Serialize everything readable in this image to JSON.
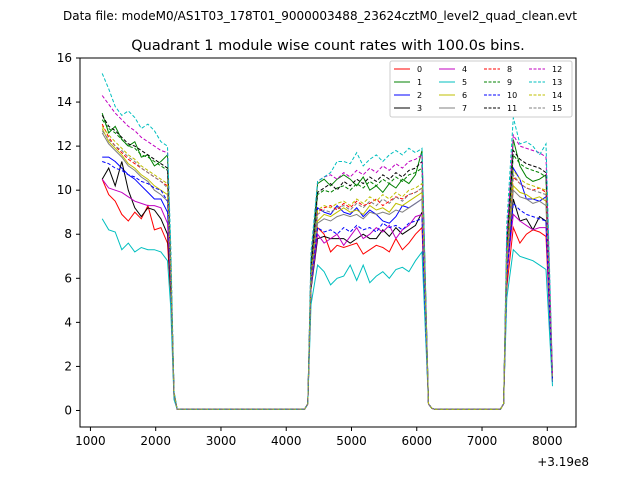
{
  "chart_data": {
    "type": "line",
    "suptitle": "Data file: modeM0/AS1T03_178T01_9000003488_23624cztM0_level2_quad_clean.evt",
    "title": "Quadrant 1 module wise count rates with 100.0s bins.",
    "xlabel": "",
    "ylabel": "",
    "x_offset_label": "+3.19e8",
    "xlim": [
      840,
      8440
    ],
    "ylim": [
      -0.75,
      16.0
    ],
    "xticks": [
      1000,
      2000,
      3000,
      4000,
      5000,
      6000,
      7000,
      8000
    ],
    "yticks": [
      0,
      2,
      4,
      6,
      8,
      10,
      12,
      14,
      16
    ],
    "grid": false,
    "legend_position": "upper-right",
    "x": [
      1180,
      1280,
      1380,
      1480,
      1580,
      1680,
      1780,
      1880,
      1980,
      2080,
      2180,
      2230,
      2280,
      2330,
      4280,
      4330,
      4380,
      4480,
      4580,
      4680,
      4780,
      4880,
      4980,
      5080,
      5180,
      5280,
      5380,
      5480,
      5580,
      5680,
      5780,
      5880,
      5980,
      6080,
      6180,
      6230,
      6280,
      7280,
      7330,
      7380,
      7480,
      7580,
      7680,
      7780,
      7880,
      7980,
      8080
    ],
    "series": [
      {
        "name": "0",
        "color": "#ff0000",
        "dash": "solid",
        "values": [
          10.5,
          9.8,
          9.5,
          8.9,
          8.6,
          9.0,
          8.7,
          9.3,
          8.2,
          8.3,
          7.6,
          5.2,
          0.7,
          0.05,
          0.05,
          0.3,
          5.5,
          8.3,
          8.0,
          7.2,
          7.5,
          7.4,
          7.5,
          7.6,
          7.1,
          7.3,
          7.5,
          7.4,
          7.2,
          7.8,
          7.3,
          7.6,
          8.0,
          8.3,
          0.3,
          0.1,
          0.05,
          0.05,
          0.3,
          5.6,
          8.3,
          7.6,
          8.0,
          8.2,
          8.1,
          7.9,
          1.3
        ]
      },
      {
        "name": "1",
        "color": "#008000",
        "dash": "solid",
        "values": [
          13.5,
          12.6,
          12.9,
          12.3,
          12.0,
          12.2,
          11.5,
          11.6,
          11.1,
          11.3,
          11.6,
          6.8,
          0.8,
          0.05,
          0.05,
          0.3,
          6.8,
          10.3,
          10.5,
          10.2,
          10.5,
          10.7,
          10.5,
          10.2,
          10.6,
          10.0,
          10.2,
          9.9,
          10.3,
          10.1,
          10.5,
          10.3,
          10.7,
          11.8,
          0.3,
          0.1,
          0.05,
          0.05,
          0.3,
          7.7,
          12.3,
          11.1,
          10.6,
          10.4,
          10.5,
          10.7,
          1.5
        ]
      },
      {
        "name": "2",
        "color": "#0000ff",
        "dash": "solid",
        "values": [
          11.5,
          11.5,
          11.3,
          11.0,
          10.7,
          10.5,
          10.2,
          9.9,
          9.6,
          9.6,
          9.0,
          6.0,
          0.7,
          0.05,
          0.05,
          0.3,
          6.2,
          9.2,
          9.0,
          8.9,
          9.3,
          9.0,
          8.9,
          9.2,
          8.8,
          9.1,
          8.9,
          8.6,
          8.5,
          8.8,
          9.3,
          9.2,
          9.4,
          9.6,
          0.3,
          0.1,
          0.05,
          0.05,
          0.3,
          6.9,
          11.0,
          10.5,
          9.6,
          9.6,
          9.5,
          9.7,
          1.3
        ]
      },
      {
        "name": "3",
        "color": "#000000",
        "dash": "solid",
        "values": [
          10.5,
          11.0,
          10.2,
          11.3,
          10.0,
          9.2,
          8.8,
          9.2,
          9.1,
          8.7,
          8.0,
          5.5,
          0.7,
          0.05,
          0.05,
          0.3,
          5.5,
          7.8,
          7.9,
          7.8,
          7.8,
          7.8,
          7.6,
          7.8,
          8.0,
          7.8,
          7.8,
          8.2,
          7.9,
          8.3,
          8.0,
          8.2,
          8.4,
          9.0,
          0.3,
          0.1,
          0.05,
          0.05,
          0.3,
          6.0,
          9.6,
          8.6,
          8.7,
          8.2,
          8.8,
          8.6,
          1.3
        ]
      },
      {
        "name": "4",
        "color": "#c000c0",
        "dash": "solid",
        "values": [
          10.5,
          10.1,
          10.0,
          9.9,
          9.7,
          9.5,
          9.4,
          9.3,
          9.3,
          9.2,
          8.5,
          5.8,
          0.7,
          0.05,
          0.05,
          0.3,
          5.6,
          8.0,
          7.6,
          7.8,
          8.0,
          7.5,
          7.9,
          8.3,
          7.8,
          8.0,
          8.3,
          8.1,
          8.4,
          7.8,
          8.2,
          8.4,
          8.8,
          8.9,
          0.3,
          0.1,
          0.05,
          0.05,
          0.3,
          6.2,
          8.9,
          8.6,
          8.4,
          8.2,
          8.3,
          8.3,
          1.3
        ]
      },
      {
        "name": "5",
        "color": "#00bfbf",
        "dash": "solid",
        "values": [
          8.7,
          8.2,
          8.1,
          7.3,
          7.6,
          7.2,
          7.4,
          7.3,
          7.3,
          7.2,
          6.8,
          4.7,
          0.5,
          0.05,
          0.05,
          0.3,
          4.8,
          6.6,
          6.3,
          5.7,
          6.0,
          6.1,
          6.6,
          5.9,
          6.6,
          5.8,
          6.1,
          6.3,
          6.0,
          6.4,
          6.5,
          6.3,
          6.8,
          7.2,
          0.3,
          0.1,
          0.05,
          0.05,
          0.3,
          5.1,
          7.3,
          7.0,
          6.9,
          6.8,
          6.6,
          6.4,
          1.1
        ]
      },
      {
        "name": "6",
        "color": "#bfbf00",
        "dash": "solid",
        "values": [
          12.8,
          12.2,
          11.9,
          11.6,
          11.2,
          11.0,
          10.7,
          10.5,
          10.2,
          10.0,
          9.8,
          6.2,
          0.7,
          0.05,
          0.05,
          0.3,
          5.8,
          8.6,
          8.9,
          8.8,
          9.0,
          9.2,
          9.0,
          9.1,
          8.9,
          9.3,
          9.1,
          9.2,
          9.0,
          9.4,
          9.3,
          9.5,
          9.7,
          9.9,
          0.3,
          0.1,
          0.05,
          0.05,
          0.3,
          6.6,
          10.2,
          9.9,
          9.8,
          9.6,
          9.7,
          9.5,
          1.4
        ]
      },
      {
        "name": "7",
        "color": "#808080",
        "dash": "solid",
        "values": [
          12.6,
          12.1,
          11.8,
          11.5,
          11.1,
          10.9,
          10.6,
          10.4,
          10.0,
          9.8,
          9.5,
          6.0,
          0.7,
          0.05,
          0.05,
          0.3,
          5.7,
          8.5,
          8.7,
          8.6,
          8.8,
          8.9,
          8.8,
          8.9,
          8.7,
          9.0,
          8.9,
          9.0,
          8.9,
          9.1,
          9.0,
          9.2,
          9.4,
          9.6,
          0.3,
          0.1,
          0.05,
          0.05,
          0.3,
          6.5,
          10.0,
          9.7,
          9.6,
          9.4,
          9.5,
          9.3,
          1.4
        ]
      },
      {
        "name": "8",
        "color": "#ff0000",
        "dash": "dashed",
        "values": [
          13.0,
          12.4,
          12.0,
          11.7,
          11.4,
          11.2,
          11.0,
          10.8,
          10.6,
          10.4,
          10.2,
          6.4,
          0.8,
          0.05,
          0.05,
          0.3,
          6.0,
          9.0,
          9.2,
          9.3,
          9.1,
          9.4,
          9.2,
          9.5,
          9.3,
          9.4,
          9.6,
          9.3,
          9.5,
          9.7,
          9.6,
          9.8,
          9.9,
          10.1,
          0.3,
          0.1,
          0.05,
          0.05,
          0.3,
          6.8,
          10.6,
          10.3,
          10.1,
          10.0,
          10.1,
          9.9,
          1.5
        ]
      },
      {
        "name": "9",
        "color": "#008000",
        "dash": "dashed",
        "values": [
          13.2,
          12.8,
          12.6,
          12.3,
          12.0,
          11.9,
          11.6,
          11.5,
          11.3,
          11.1,
          10.9,
          6.7,
          0.8,
          0.05,
          0.05,
          0.3,
          6.4,
          9.8,
          10.0,
          9.9,
          10.1,
          10.2,
          10.0,
          10.3,
          10.1,
          10.4,
          10.2,
          10.5,
          10.3,
          10.6,
          10.4,
          10.7,
          10.8,
          11.0,
          0.3,
          0.1,
          0.05,
          0.05,
          0.3,
          7.3,
          11.6,
          11.2,
          11.0,
          10.9,
          10.8,
          10.6,
          1.5
        ]
      },
      {
        "name": "10",
        "color": "#0000ff",
        "dash": "dashed",
        "values": [
          11.3,
          11.2,
          11.0,
          10.9,
          10.7,
          10.6,
          10.4,
          10.3,
          10.1,
          10.0,
          9.5,
          6.1,
          0.7,
          0.05,
          0.05,
          0.3,
          5.8,
          8.3,
          8.1,
          8.2,
          8.0,
          8.3,
          8.1,
          8.4,
          8.2,
          8.3,
          8.1,
          8.5,
          8.3,
          8.4,
          8.2,
          8.5,
          8.6,
          8.7,
          0.3,
          0.1,
          0.05,
          0.05,
          0.3,
          6.2,
          9.4,
          9.1,
          8.9,
          8.8,
          8.7,
          8.6,
          1.3
        ]
      },
      {
        "name": "11",
        "color": "#000000",
        "dash": "dashed",
        "values": [
          13.4,
          12.9,
          12.7,
          12.4,
          12.1,
          12.0,
          11.8,
          11.6,
          11.4,
          11.2,
          11.0,
          6.8,
          0.8,
          0.05,
          0.05,
          0.3,
          6.5,
          9.9,
          10.1,
          10.3,
          10.0,
          10.4,
          10.2,
          10.5,
          10.3,
          10.6,
          10.4,
          10.7,
          10.5,
          10.8,
          10.6,
          10.9,
          11.0,
          11.3,
          0.3,
          0.1,
          0.05,
          0.05,
          0.3,
          7.4,
          11.8,
          11.4,
          11.2,
          11.1,
          11.0,
          10.8,
          1.5
        ]
      },
      {
        "name": "12",
        "color": "#c000c0",
        "dash": "dashed",
        "values": [
          14.3,
          13.9,
          13.5,
          13.2,
          12.9,
          12.7,
          12.4,
          12.2,
          12.0,
          11.8,
          11.7,
          7.2,
          0.8,
          0.05,
          0.05,
          0.3,
          6.9,
          10.4,
          10.6,
          10.7,
          10.5,
          10.8,
          10.6,
          10.9,
          10.7,
          11.0,
          10.8,
          11.1,
          10.9,
          11.2,
          11.0,
          11.3,
          11.4,
          11.6,
          0.3,
          0.1,
          0.05,
          0.05,
          0.3,
          7.8,
          12.5,
          12.0,
          11.9,
          11.8,
          11.7,
          11.5,
          1.6
        ]
      },
      {
        "name": "13",
        "color": "#00bfbf",
        "dash": "dashed",
        "values": [
          15.3,
          14.6,
          13.8,
          13.4,
          13.6,
          13.3,
          12.8,
          13.0,
          12.7,
          12.2,
          12.0,
          7.6,
          0.9,
          0.05,
          0.05,
          0.3,
          7.2,
          10.4,
          10.6,
          10.8,
          11.3,
          11.3,
          11.2,
          11.7,
          11.1,
          11.4,
          11.6,
          11.3,
          11.6,
          11.8,
          11.6,
          11.9,
          11.7,
          11.9,
          0.3,
          0.1,
          0.05,
          0.05,
          0.3,
          8.5,
          13.3,
          12.1,
          12.2,
          12.0,
          11.6,
          12.1,
          1.7
        ]
      },
      {
        "name": "14",
        "color": "#bfbf00",
        "dash": "dashed",
        "values": [
          12.9,
          12.5,
          12.2,
          11.9,
          11.6,
          11.4,
          11.1,
          10.9,
          10.7,
          10.5,
          10.3,
          6.5,
          0.8,
          0.05,
          0.05,
          0.3,
          6.1,
          9.1,
          9.3,
          9.2,
          9.4,
          9.5,
          9.3,
          9.6,
          9.4,
          9.7,
          9.5,
          9.8,
          9.6,
          9.9,
          9.7,
          10.0,
          10.1,
          10.3,
          0.3,
          0.1,
          0.05,
          0.05,
          0.3,
          6.9,
          10.9,
          10.5,
          10.3,
          10.2,
          10.1,
          10.0,
          1.5
        ]
      },
      {
        "name": "15",
        "color": "#808080",
        "dash": "dashed",
        "values": [
          12.7,
          12.3,
          12.0,
          11.8,
          11.5,
          11.3,
          11.0,
          10.8,
          10.6,
          10.4,
          10.1,
          6.3,
          0.7,
          0.05,
          0.05,
          0.3,
          6.0,
          8.9,
          9.1,
          9.0,
          9.2,
          9.3,
          9.1,
          9.4,
          9.2,
          9.5,
          9.3,
          9.6,
          9.4,
          9.7,
          9.5,
          9.8,
          9.9,
          10.1,
          0.3,
          0.1,
          0.05,
          0.05,
          0.3,
          6.8,
          10.7,
          10.3,
          10.1,
          10.0,
          9.9,
          9.8,
          1.4
        ]
      }
    ]
  }
}
